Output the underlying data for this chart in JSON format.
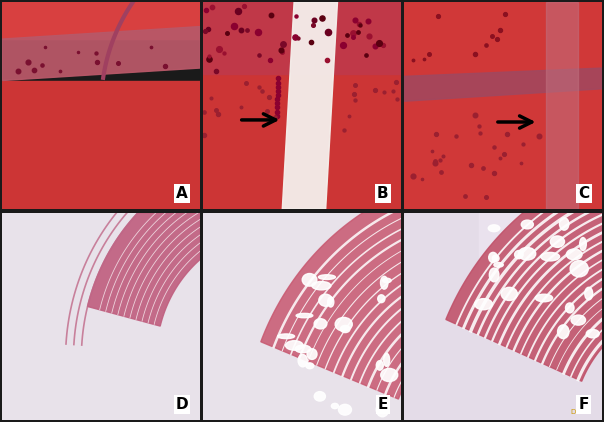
{
  "figsize": [
    6.04,
    4.22
  ],
  "dpi": 100,
  "border_color": "#2a2a2a",
  "border_linewidth": 1.5,
  "background_color": "#1a1a1a",
  "label_fontsize": 11,
  "label_color": "black",
  "label_bg": "white",
  "panels": [
    "A",
    "B",
    "C",
    "D",
    "E",
    "F"
  ]
}
